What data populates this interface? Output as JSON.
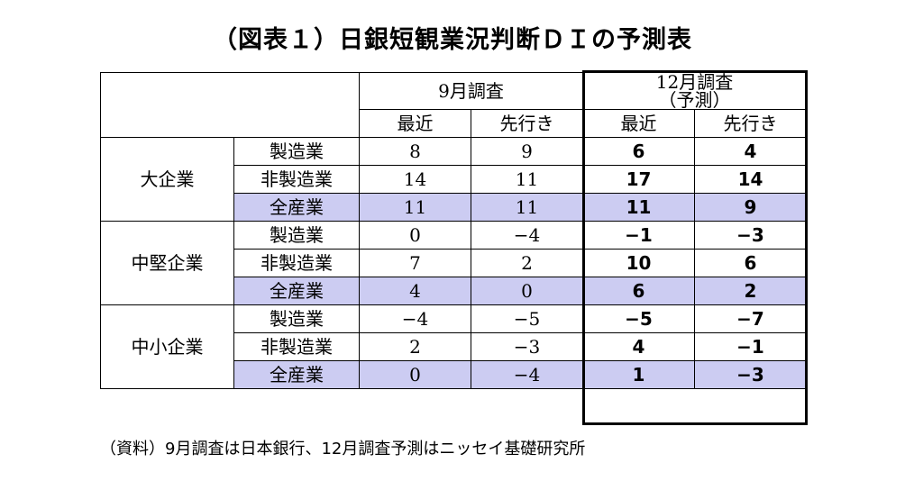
{
  "title": "（図表１）日銀短観業況判断ＤＩの予測表",
  "table": {
    "group1": "9月調査",
    "group2_line1": "12月調査",
    "group2_line2": "（予測）",
    "col_recent": "最近",
    "col_outlook": "先行き",
    "categories": [
      {
        "name": "大企業",
        "rows": [
          {
            "label": "製造業",
            "sep_recent": "8",
            "sep_outlook": "9",
            "dec_recent": "6",
            "dec_outlook": "4"
          },
          {
            "label": "非製造業",
            "sep_recent": "14",
            "sep_outlook": "11",
            "dec_recent": "17",
            "dec_outlook": "14"
          },
          {
            "label": "全産業",
            "sep_recent": "11",
            "sep_outlook": "11",
            "dec_recent": "11",
            "dec_outlook": "9"
          }
        ]
      },
      {
        "name": "中堅企業",
        "rows": [
          {
            "label": "製造業",
            "sep_recent": "0",
            "sep_outlook": "−4",
            "dec_recent": "−1",
            "dec_outlook": "−3"
          },
          {
            "label": "非製造業",
            "sep_recent": "7",
            "sep_outlook": "2",
            "dec_recent": "10",
            "dec_outlook": "6"
          },
          {
            "label": "全産業",
            "sep_recent": "4",
            "sep_outlook": "0",
            "dec_recent": "6",
            "dec_outlook": "2"
          }
        ]
      },
      {
        "name": "中小企業",
        "rows": [
          {
            "label": "製造業",
            "sep_recent": "−4",
            "sep_outlook": "−5",
            "dec_recent": "−5",
            "dec_outlook": "−7"
          },
          {
            "label": "非製造業",
            "sep_recent": "2",
            "sep_outlook": "−3",
            "dec_recent": "4",
            "dec_outlook": "−1"
          },
          {
            "label": "全産業",
            "sep_recent": "0",
            "sep_outlook": "−4",
            "dec_recent": "1",
            "dec_outlook": "−3"
          }
        ]
      }
    ]
  },
  "source": "（資料）9月調査は日本銀行、12月調査予測はニッセイ基礎研究所",
  "colors": {
    "highlight": "#ccccf2",
    "border": "#000000"
  }
}
